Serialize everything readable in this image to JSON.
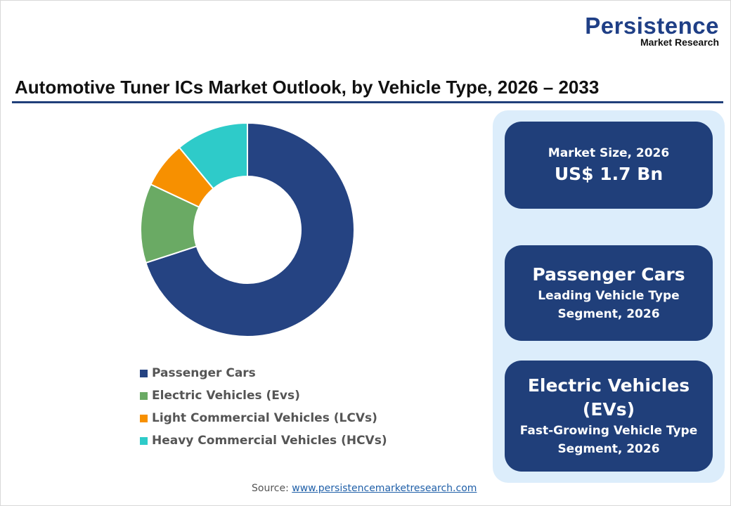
{
  "logo": {
    "line1": "Persistence",
    "line2": "Market Research"
  },
  "chart_data": {
    "type": "pie",
    "variant": "donut",
    "title": "Automotive Tuner ICs Market Outlook, by Vehicle Type, 2026 – 2033",
    "categories": [
      "Passenger Cars",
      "Electric Vehicles (Evs)",
      "Light Commercial Vehicles (LCVs)",
      "Heavy Commercial Vehicles (HCVs)"
    ],
    "values": [
      70,
      12,
      7,
      11
    ],
    "unit": "% share (estimated)",
    "colors": [
      "#254382",
      "#6aaa64",
      "#f79000",
      "#2ecbc9"
    ],
    "legend_position": "bottom"
  },
  "cards": [
    {
      "line1": "Market Size, 2026",
      "line2": "US$ 1.7 Bn"
    },
    {
      "line1": "Passenger Cars",
      "line2": "Leading Vehicle Type",
      "line3": "Segment, 2026"
    },
    {
      "line1": "Electric Vehicles",
      "line1b": "(EVs)",
      "line2": "Fast-Growing Vehicle Type",
      "line3": "Segment, 2026"
    }
  ],
  "source": {
    "label": "Source:",
    "link": "www.persistencemarketresearch.com"
  },
  "colors": {
    "navy": "#203f7a",
    "panel": "#dcedfb"
  }
}
